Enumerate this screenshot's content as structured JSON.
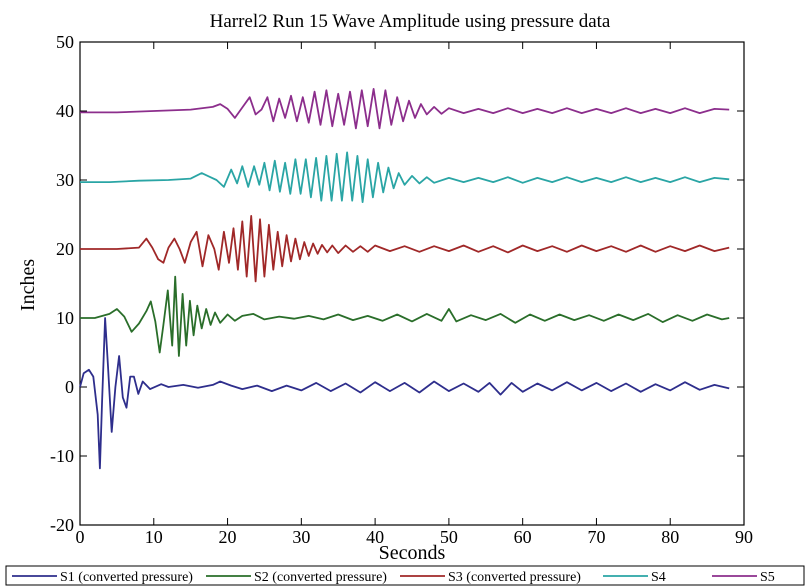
{
  "chart_data": {
    "type": "line",
    "title": "Harrel2 Run 15 Wave Amplitude using pressure data",
    "xlabel": "Seconds",
    "ylabel": "Inches",
    "xlim": [
      0,
      90
    ],
    "ylim": [
      -20,
      50
    ],
    "xticks": [
      0,
      10,
      20,
      30,
      40,
      50,
      60,
      70,
      80,
      90
    ],
    "yticks": [
      -20,
      -10,
      0,
      10,
      20,
      30,
      40,
      50
    ],
    "grid": false,
    "legend_position": "bottom",
    "series": [
      {
        "name": "S1 (converted pressure)",
        "color": "#2e2e8c",
        "points": [
          [
            0,
            0
          ],
          [
            0.5,
            2
          ],
          [
            1.2,
            2.5
          ],
          [
            1.8,
            1.5
          ],
          [
            2.4,
            -4
          ],
          [
            2.7,
            -11.8
          ],
          [
            3.0,
            -2
          ],
          [
            3.4,
            10
          ],
          [
            3.8,
            3
          ],
          [
            4.3,
            -6.5
          ],
          [
            4.8,
            0
          ],
          [
            5.3,
            4.5
          ],
          [
            5.8,
            -1.5
          ],
          [
            6.3,
            -3
          ],
          [
            6.8,
            1.5
          ],
          [
            7.3,
            1.5
          ],
          [
            7.9,
            -1
          ],
          [
            8.5,
            0.8
          ],
          [
            9.5,
            -0.3
          ],
          [
            11,
            0.4
          ],
          [
            12,
            0
          ],
          [
            14,
            0.3
          ],
          [
            16,
            -0.1
          ],
          [
            18,
            0.3
          ],
          [
            19,
            0.8
          ],
          [
            20.5,
            0.2
          ],
          [
            22,
            -0.3
          ],
          [
            24,
            0.2
          ],
          [
            26,
            -0.6
          ],
          [
            28,
            0.2
          ],
          [
            30,
            -0.5
          ],
          [
            32,
            0.6
          ],
          [
            34,
            -0.6
          ],
          [
            36,
            0.5
          ],
          [
            38,
            -0.8
          ],
          [
            40,
            0.7
          ],
          [
            42,
            -0.6
          ],
          [
            44,
            0.6
          ],
          [
            46,
            -0.8
          ],
          [
            48,
            0.8
          ],
          [
            50,
            -0.6
          ],
          [
            52,
            0.5
          ],
          [
            54,
            -0.7
          ],
          [
            55.5,
            0.6
          ],
          [
            57,
            -1.1
          ],
          [
            58.5,
            0.6
          ],
          [
            60,
            -0.7
          ],
          [
            62,
            0.5
          ],
          [
            64,
            -0.5
          ],
          [
            66,
            0.7
          ],
          [
            68,
            -0.5
          ],
          [
            70,
            0.6
          ],
          [
            72,
            -0.6
          ],
          [
            74,
            0.5
          ],
          [
            76,
            -0.7
          ],
          [
            78,
            0.4
          ],
          [
            80,
            -0.5
          ],
          [
            82,
            0.7
          ],
          [
            84,
            -0.4
          ],
          [
            86,
            0.3
          ],
          [
            88,
            -0.2
          ]
        ]
      },
      {
        "name": "S2 (converted pressure)",
        "color": "#2a6e2a",
        "points": [
          [
            0,
            10
          ],
          [
            2,
            10
          ],
          [
            4,
            10.6
          ],
          [
            5,
            11.3
          ],
          [
            6,
            10.2
          ],
          [
            7,
            8
          ],
          [
            8,
            9.2
          ],
          [
            9,
            11
          ],
          [
            9.6,
            12.4
          ],
          [
            10.2,
            9.5
          ],
          [
            10.8,
            5
          ],
          [
            11.3,
            9
          ],
          [
            11.9,
            14
          ],
          [
            12.5,
            6
          ],
          [
            12.9,
            16
          ],
          [
            13.4,
            4.5
          ],
          [
            13.9,
            13.5
          ],
          [
            14.4,
            6
          ],
          [
            14.9,
            12.5
          ],
          [
            15.4,
            7.5
          ],
          [
            15.9,
            11.8
          ],
          [
            16.5,
            8.5
          ],
          [
            17.1,
            11.3
          ],
          [
            17.7,
            9
          ],
          [
            18.3,
            10.8
          ],
          [
            19,
            9.3
          ],
          [
            20,
            10.5
          ],
          [
            21,
            9.6
          ],
          [
            22,
            10.3
          ],
          [
            23.5,
            10.6
          ],
          [
            25,
            9.8
          ],
          [
            27,
            10.2
          ],
          [
            29,
            9.9
          ],
          [
            31,
            10.3
          ],
          [
            33,
            9.8
          ],
          [
            35,
            10.5
          ],
          [
            37,
            9.7
          ],
          [
            39,
            10.3
          ],
          [
            41,
            9.6
          ],
          [
            43,
            10.5
          ],
          [
            45,
            9.5
          ],
          [
            47,
            10.6
          ],
          [
            49,
            9.6
          ],
          [
            50,
            11.3
          ],
          [
            51,
            9.5
          ],
          [
            53,
            10.4
          ],
          [
            55,
            9.7
          ],
          [
            57,
            10.6
          ],
          [
            59,
            9.3
          ],
          [
            61,
            10.5
          ],
          [
            63,
            9.6
          ],
          [
            65,
            10.5
          ],
          [
            67,
            9.7
          ],
          [
            69,
            10.4
          ],
          [
            71,
            9.6
          ],
          [
            73,
            10.5
          ],
          [
            75,
            9.7
          ],
          [
            77,
            10.6
          ],
          [
            79,
            9.4
          ],
          [
            81,
            10.4
          ],
          [
            83,
            9.6
          ],
          [
            85,
            10.5
          ],
          [
            87,
            9.8
          ],
          [
            88,
            10
          ]
        ]
      },
      {
        "name": "S3 (converted pressure)",
        "color": "#a02828",
        "points": [
          [
            0,
            20
          ],
          [
            5,
            20
          ],
          [
            8,
            20.2
          ],
          [
            9,
            21.5
          ],
          [
            9.8,
            20.2
          ],
          [
            10.6,
            18.5
          ],
          [
            11.3,
            18
          ],
          [
            12,
            20.2
          ],
          [
            12.8,
            21.5
          ],
          [
            13.5,
            20
          ],
          [
            14.2,
            18
          ],
          [
            15,
            21
          ],
          [
            15.8,
            22.5
          ],
          [
            16.6,
            17.5
          ],
          [
            17.4,
            22
          ],
          [
            18.2,
            20
          ],
          [
            18.8,
            17
          ],
          [
            19.5,
            22.5
          ],
          [
            20.2,
            18
          ],
          [
            20.8,
            23
          ],
          [
            21.4,
            17
          ],
          [
            22,
            24
          ],
          [
            22.6,
            16
          ],
          [
            23.2,
            24.8
          ],
          [
            23.8,
            15.3
          ],
          [
            24.4,
            24.3
          ],
          [
            25,
            16
          ],
          [
            25.6,
            23.5
          ],
          [
            26.2,
            17
          ],
          [
            26.8,
            22.5
          ],
          [
            27.4,
            17.5
          ],
          [
            28,
            22
          ],
          [
            28.6,
            18.2
          ],
          [
            29.2,
            21.5
          ],
          [
            29.8,
            18.5
          ],
          [
            30.4,
            21
          ],
          [
            31,
            19
          ],
          [
            31.6,
            20.8
          ],
          [
            32.2,
            19.3
          ],
          [
            32.8,
            20.6
          ],
          [
            33.5,
            19.5
          ],
          [
            34.2,
            20.5
          ],
          [
            35,
            19.4
          ],
          [
            36,
            20.5
          ],
          [
            37,
            19.6
          ],
          [
            38,
            20.4
          ],
          [
            39,
            19.6
          ],
          [
            40,
            20.5
          ],
          [
            42,
            19.7
          ],
          [
            44,
            20.4
          ],
          [
            46,
            19.6
          ],
          [
            48,
            20.4
          ],
          [
            50,
            19.7
          ],
          [
            52,
            20.5
          ],
          [
            54,
            19.6
          ],
          [
            56,
            20.4
          ],
          [
            58,
            19.5
          ],
          [
            60,
            20.5
          ],
          [
            62,
            19.7
          ],
          [
            64,
            20.4
          ],
          [
            66,
            19.6
          ],
          [
            68,
            20.5
          ],
          [
            70,
            19.7
          ],
          [
            72,
            20.4
          ],
          [
            74,
            19.6
          ],
          [
            76,
            20.5
          ],
          [
            78,
            19.6
          ],
          [
            80,
            20.4
          ],
          [
            82,
            19.7
          ],
          [
            84,
            20.5
          ],
          [
            86,
            19.7
          ],
          [
            88,
            20.2
          ]
        ]
      },
      {
        "name": "S4",
        "color": "#2aa5a5",
        "points": [
          [
            0,
            29.7
          ],
          [
            4,
            29.7
          ],
          [
            8,
            29.9
          ],
          [
            12,
            30
          ],
          [
            15,
            30.2
          ],
          [
            16.5,
            31
          ],
          [
            17.5,
            30.5
          ],
          [
            18.5,
            30
          ],
          [
            19.5,
            29
          ],
          [
            20.5,
            31.5
          ],
          [
            21.3,
            29.5
          ],
          [
            22,
            32
          ],
          [
            22.8,
            29
          ],
          [
            23.6,
            32
          ],
          [
            24.3,
            29.3
          ],
          [
            25,
            32.5
          ],
          [
            25.7,
            28.5
          ],
          [
            26.4,
            32.8
          ],
          [
            27.1,
            28.3
          ],
          [
            27.8,
            32.5
          ],
          [
            28.5,
            28
          ],
          [
            29.2,
            33
          ],
          [
            29.9,
            28
          ],
          [
            30.6,
            33
          ],
          [
            31.3,
            27.5
          ],
          [
            32,
            33.2
          ],
          [
            32.7,
            27
          ],
          [
            33.4,
            33.5
          ],
          [
            34.1,
            27
          ],
          [
            34.8,
            33.8
          ],
          [
            35.5,
            27
          ],
          [
            36.2,
            34
          ],
          [
            36.9,
            27
          ],
          [
            37.6,
            33.5
          ],
          [
            38.3,
            26.8
          ],
          [
            39,
            33
          ],
          [
            39.7,
            27.5
          ],
          [
            40.4,
            32.5
          ],
          [
            41.1,
            28.2
          ],
          [
            41.8,
            31.8
          ],
          [
            42.5,
            28.8
          ],
          [
            43.2,
            31
          ],
          [
            44,
            29.3
          ],
          [
            45,
            30.6
          ],
          [
            46,
            29.5
          ],
          [
            47,
            30.4
          ],
          [
            48,
            29.6
          ],
          [
            50,
            30.3
          ],
          [
            52,
            29.7
          ],
          [
            54,
            30.3
          ],
          [
            56,
            29.7
          ],
          [
            58,
            30.4
          ],
          [
            60,
            29.6
          ],
          [
            62,
            30.3
          ],
          [
            64,
            29.7
          ],
          [
            66,
            30.4
          ],
          [
            68,
            29.7
          ],
          [
            70,
            30.3
          ],
          [
            72,
            29.7
          ],
          [
            74,
            30.4
          ],
          [
            76,
            29.7
          ],
          [
            78,
            30.3
          ],
          [
            80,
            29.7
          ],
          [
            82,
            30.4
          ],
          [
            84,
            29.7
          ],
          [
            86,
            30.3
          ],
          [
            88,
            30.1
          ]
        ]
      },
      {
        "name": "S5",
        "color": "#8c2e8c",
        "points": [
          [
            0,
            39.8
          ],
          [
            5,
            39.8
          ],
          [
            10,
            40
          ],
          [
            15,
            40.2
          ],
          [
            18,
            40.6
          ],
          [
            19,
            41
          ],
          [
            20,
            40.3
          ],
          [
            21,
            39
          ],
          [
            22,
            40.5
          ],
          [
            23,
            42
          ],
          [
            23.8,
            39.5
          ],
          [
            24.6,
            40.2
          ],
          [
            25.4,
            42
          ],
          [
            26.2,
            38.5
          ],
          [
            27,
            41.8
          ],
          [
            27.8,
            39
          ],
          [
            28.6,
            42.2
          ],
          [
            29.4,
            38.5
          ],
          [
            30.2,
            42
          ],
          [
            31,
            38.3
          ],
          [
            31.8,
            42.8
          ],
          [
            32.6,
            38
          ],
          [
            33.4,
            43
          ],
          [
            34.2,
            37.8
          ],
          [
            35,
            42.5
          ],
          [
            35.8,
            38
          ],
          [
            36.6,
            42.8
          ],
          [
            37.4,
            37.5
          ],
          [
            38.2,
            43
          ],
          [
            39,
            37.8
          ],
          [
            39.8,
            43.2
          ],
          [
            40.6,
            37.5
          ],
          [
            41.4,
            43
          ],
          [
            42.2,
            38
          ],
          [
            43,
            42
          ],
          [
            43.8,
            38.5
          ],
          [
            44.6,
            41.5
          ],
          [
            45.4,
            39
          ],
          [
            46.2,
            41
          ],
          [
            47,
            39.5
          ],
          [
            48,
            40.6
          ],
          [
            49,
            39.6
          ],
          [
            50,
            40.4
          ],
          [
            52,
            39.7
          ],
          [
            54,
            40.3
          ],
          [
            56,
            39.7
          ],
          [
            58,
            40.4
          ],
          [
            60,
            39.7
          ],
          [
            62,
            40.3
          ],
          [
            64,
            39.7
          ],
          [
            66,
            40.4
          ],
          [
            68,
            39.7
          ],
          [
            70,
            40.3
          ],
          [
            72,
            39.7
          ],
          [
            74,
            40.4
          ],
          [
            76,
            39.7
          ],
          [
            78,
            40.3
          ],
          [
            80,
            39.7
          ],
          [
            82,
            40.4
          ],
          [
            84,
            39.7
          ],
          [
            86,
            40.3
          ],
          [
            88,
            40.2
          ]
        ]
      }
    ]
  }
}
